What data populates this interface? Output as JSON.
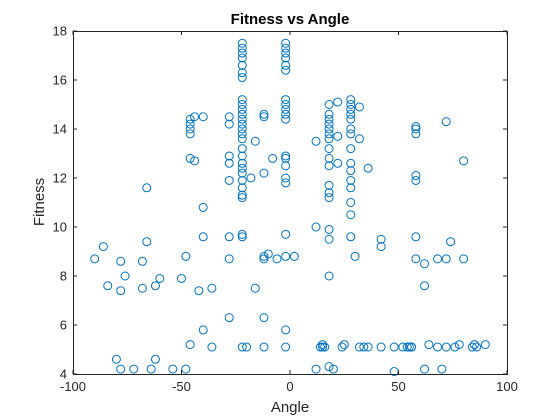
{
  "chart_data": {
    "type": "scatter",
    "title": "Fitness vs Angle",
    "xlabel": "Angle",
    "ylabel": "Fitness",
    "xlim": [
      -100,
      100
    ],
    "ylim": [
      4,
      18
    ],
    "xticks": [
      "-100",
      "-50",
      "0",
      "50",
      "100"
    ],
    "yticks": [
      "4",
      "6",
      "8",
      "10",
      "12",
      "14",
      "16",
      "18"
    ],
    "grid": false,
    "marker": "circle-open",
    "series": [
      {
        "color": "#0072BD",
        "points": [
          [
            -22,
            17.5
          ],
          [
            -22,
            17.3
          ],
          [
            -22,
            17.1
          ],
          [
            -22,
            16.9
          ],
          [
            -22,
            16.6
          ],
          [
            -22,
            16.3
          ],
          [
            -22,
            16.1
          ],
          [
            -22,
            15.2
          ],
          [
            -22,
            15.0
          ],
          [
            -22,
            14.8
          ],
          [
            -22,
            14.6
          ],
          [
            -22,
            14.4
          ],
          [
            -22,
            14.2
          ],
          [
            -22,
            14.0
          ],
          [
            -22,
            13.8
          ],
          [
            -22,
            13.6
          ],
          [
            -22,
            13.2
          ],
          [
            -22,
            12.9
          ],
          [
            -22,
            12.6
          ],
          [
            -22,
            12.4
          ],
          [
            -22,
            12.2
          ],
          [
            -22,
            11.9
          ],
          [
            -22,
            11.6
          ],
          [
            -22,
            11.3
          ],
          [
            -22,
            11.2
          ],
          [
            -22,
            9.7
          ],
          [
            -22,
            9.6
          ],
          [
            -22,
            5.1
          ],
          [
            -2,
            17.5
          ],
          [
            -2,
            17.3
          ],
          [
            -2,
            17.1
          ],
          [
            -2,
            16.9
          ],
          [
            -2,
            16.6
          ],
          [
            -2,
            16.4
          ],
          [
            -2,
            15.2
          ],
          [
            -2,
            15.0
          ],
          [
            -2,
            14.8
          ],
          [
            -2,
            14.6
          ],
          [
            -2,
            14.4
          ],
          [
            -2,
            12.9
          ],
          [
            -2,
            12.8
          ],
          [
            -2,
            12.0
          ],
          [
            -2,
            11.8
          ],
          [
            -2,
            9.7
          ],
          [
            -2,
            8.8
          ],
          [
            -2,
            5.1
          ],
          [
            -46,
            14.4
          ],
          [
            -46,
            14.2
          ],
          [
            -46,
            14.0
          ],
          [
            -46,
            13.8
          ],
          [
            -46,
            12.8
          ],
          [
            -44,
            14.5
          ],
          [
            -44,
            12.7
          ],
          [
            -40,
            14.5
          ],
          [
            -40,
            10.8
          ],
          [
            -40,
            9.6
          ],
          [
            -40,
            5.8
          ],
          [
            -28,
            14.5
          ],
          [
            -28,
            14.2
          ],
          [
            -28,
            12.9
          ],
          [
            -28,
            12.6
          ],
          [
            -28,
            11.9
          ],
          [
            -28,
            9.6
          ],
          [
            -28,
            8.7
          ],
          [
            -28,
            6.3
          ],
          [
            -12,
            14.6
          ],
          [
            -12,
            14.5
          ],
          [
            -12,
            12.2
          ],
          [
            -12,
            8.8
          ],
          [
            -12,
            8.7
          ],
          [
            -12,
            6.3
          ],
          [
            -12,
            5.1
          ],
          [
            18,
            15.0
          ],
          [
            18,
            14.6
          ],
          [
            18,
            14.4
          ],
          [
            18,
            14.2
          ],
          [
            18,
            14.0
          ],
          [
            18,
            13.8
          ],
          [
            18,
            13.6
          ],
          [
            18,
            13.2
          ],
          [
            18,
            12.8
          ],
          [
            18,
            12.5
          ],
          [
            18,
            11.7
          ],
          [
            18,
            11.4
          ],
          [
            18,
            11.2
          ],
          [
            18,
            9.9
          ],
          [
            18,
            9.5
          ],
          [
            18,
            8.0
          ],
          [
            18,
            4.3
          ],
          [
            28,
            15.2
          ],
          [
            28,
            15.0
          ],
          [
            28,
            14.8
          ],
          [
            28,
            14.6
          ],
          [
            28,
            14.4
          ],
          [
            28,
            14.0
          ],
          [
            28,
            13.8
          ],
          [
            28,
            13.2
          ],
          [
            28,
            12.6
          ],
          [
            28,
            12.3
          ],
          [
            28,
            11.9
          ],
          [
            28,
            11.6
          ],
          [
            28,
            11.0
          ],
          [
            28,
            10.5
          ],
          [
            28,
            9.6
          ],
          [
            22,
            15.1
          ],
          [
            22,
            13.7
          ],
          [
            22,
            12.6
          ],
          [
            32,
            14.9
          ],
          [
            32,
            13.6
          ],
          [
            30,
            8.8
          ],
          [
            36,
            12.4
          ],
          [
            42,
            9.5
          ],
          [
            42,
            9.2
          ],
          [
            12,
            13.5
          ],
          [
            12,
            10.0
          ],
          [
            -8,
            12.8
          ],
          [
            -16,
            13.5
          ],
          [
            -18,
            12.0
          ],
          [
            -2,
            12.5
          ],
          [
            2,
            8.8
          ],
          [
            -6,
            8.7
          ],
          [
            -10,
            8.9
          ],
          [
            -66,
            11.6
          ],
          [
            -68,
            8.6
          ],
          [
            -66,
            9.4
          ],
          [
            -86,
            9.2
          ],
          [
            -90,
            8.7
          ],
          [
            -84,
            7.6
          ],
          [
            -76,
            8.0
          ],
          [
            -78,
            8.6
          ],
          [
            -78,
            7.4
          ],
          [
            -68,
            7.5
          ],
          [
            -62,
            7.6
          ],
          [
            -60,
            7.9
          ],
          [
            -50,
            7.9
          ],
          [
            -48,
            8.8
          ],
          [
            -42,
            7.4
          ],
          [
            -36,
            7.5
          ],
          [
            -16,
            7.5
          ],
          [
            -80,
            4.6
          ],
          [
            -78,
            4.2
          ],
          [
            -72,
            4.2
          ],
          [
            -64,
            4.2
          ],
          [
            -62,
            4.6
          ],
          [
            -54,
            4.2
          ],
          [
            -48,
            4.2
          ],
          [
            -46,
            5.2
          ],
          [
            -36,
            5.1
          ],
          [
            -20,
            5.1
          ],
          [
            -2,
            5.8
          ],
          [
            14,
            5.1
          ],
          [
            15,
            5.2
          ],
          [
            15,
            5.1
          ],
          [
            16,
            5.1
          ],
          [
            24,
            5.1
          ],
          [
            25,
            5.2
          ],
          [
            32,
            5.1
          ],
          [
            34,
            5.1
          ],
          [
            36,
            5.1
          ],
          [
            42,
            5.1
          ],
          [
            48,
            5.1
          ],
          [
            52,
            5.1
          ],
          [
            54,
            5.1
          ],
          [
            55,
            5.1
          ],
          [
            56,
            5.1
          ],
          [
            12,
            4.2
          ],
          [
            20,
            4.2
          ],
          [
            48,
            4.1
          ],
          [
            56,
            5.1
          ],
          [
            62,
            4.2
          ],
          [
            64,
            5.2
          ],
          [
            68,
            5.1
          ],
          [
            70,
            4.2
          ],
          [
            72,
            5.1
          ],
          [
            76,
            5.1
          ],
          [
            78,
            5.2
          ],
          [
            84,
            5.1
          ],
          [
            85,
            5.2
          ],
          [
            86,
            5.1
          ],
          [
            90,
            5.2
          ],
          [
            58,
            14.1
          ],
          [
            58,
            14.0
          ],
          [
            58,
            13.8
          ],
          [
            58,
            12.1
          ],
          [
            58,
            11.9
          ],
          [
            58,
            9.6
          ],
          [
            58,
            8.7
          ],
          [
            62,
            8.5
          ],
          [
            62,
            7.6
          ],
          [
            68,
            8.7
          ],
          [
            72,
            8.7
          ],
          [
            74,
            9.4
          ],
          [
            80,
            8.7
          ],
          [
            72,
            14.3
          ],
          [
            80,
            12.7
          ]
        ]
      }
    ]
  }
}
